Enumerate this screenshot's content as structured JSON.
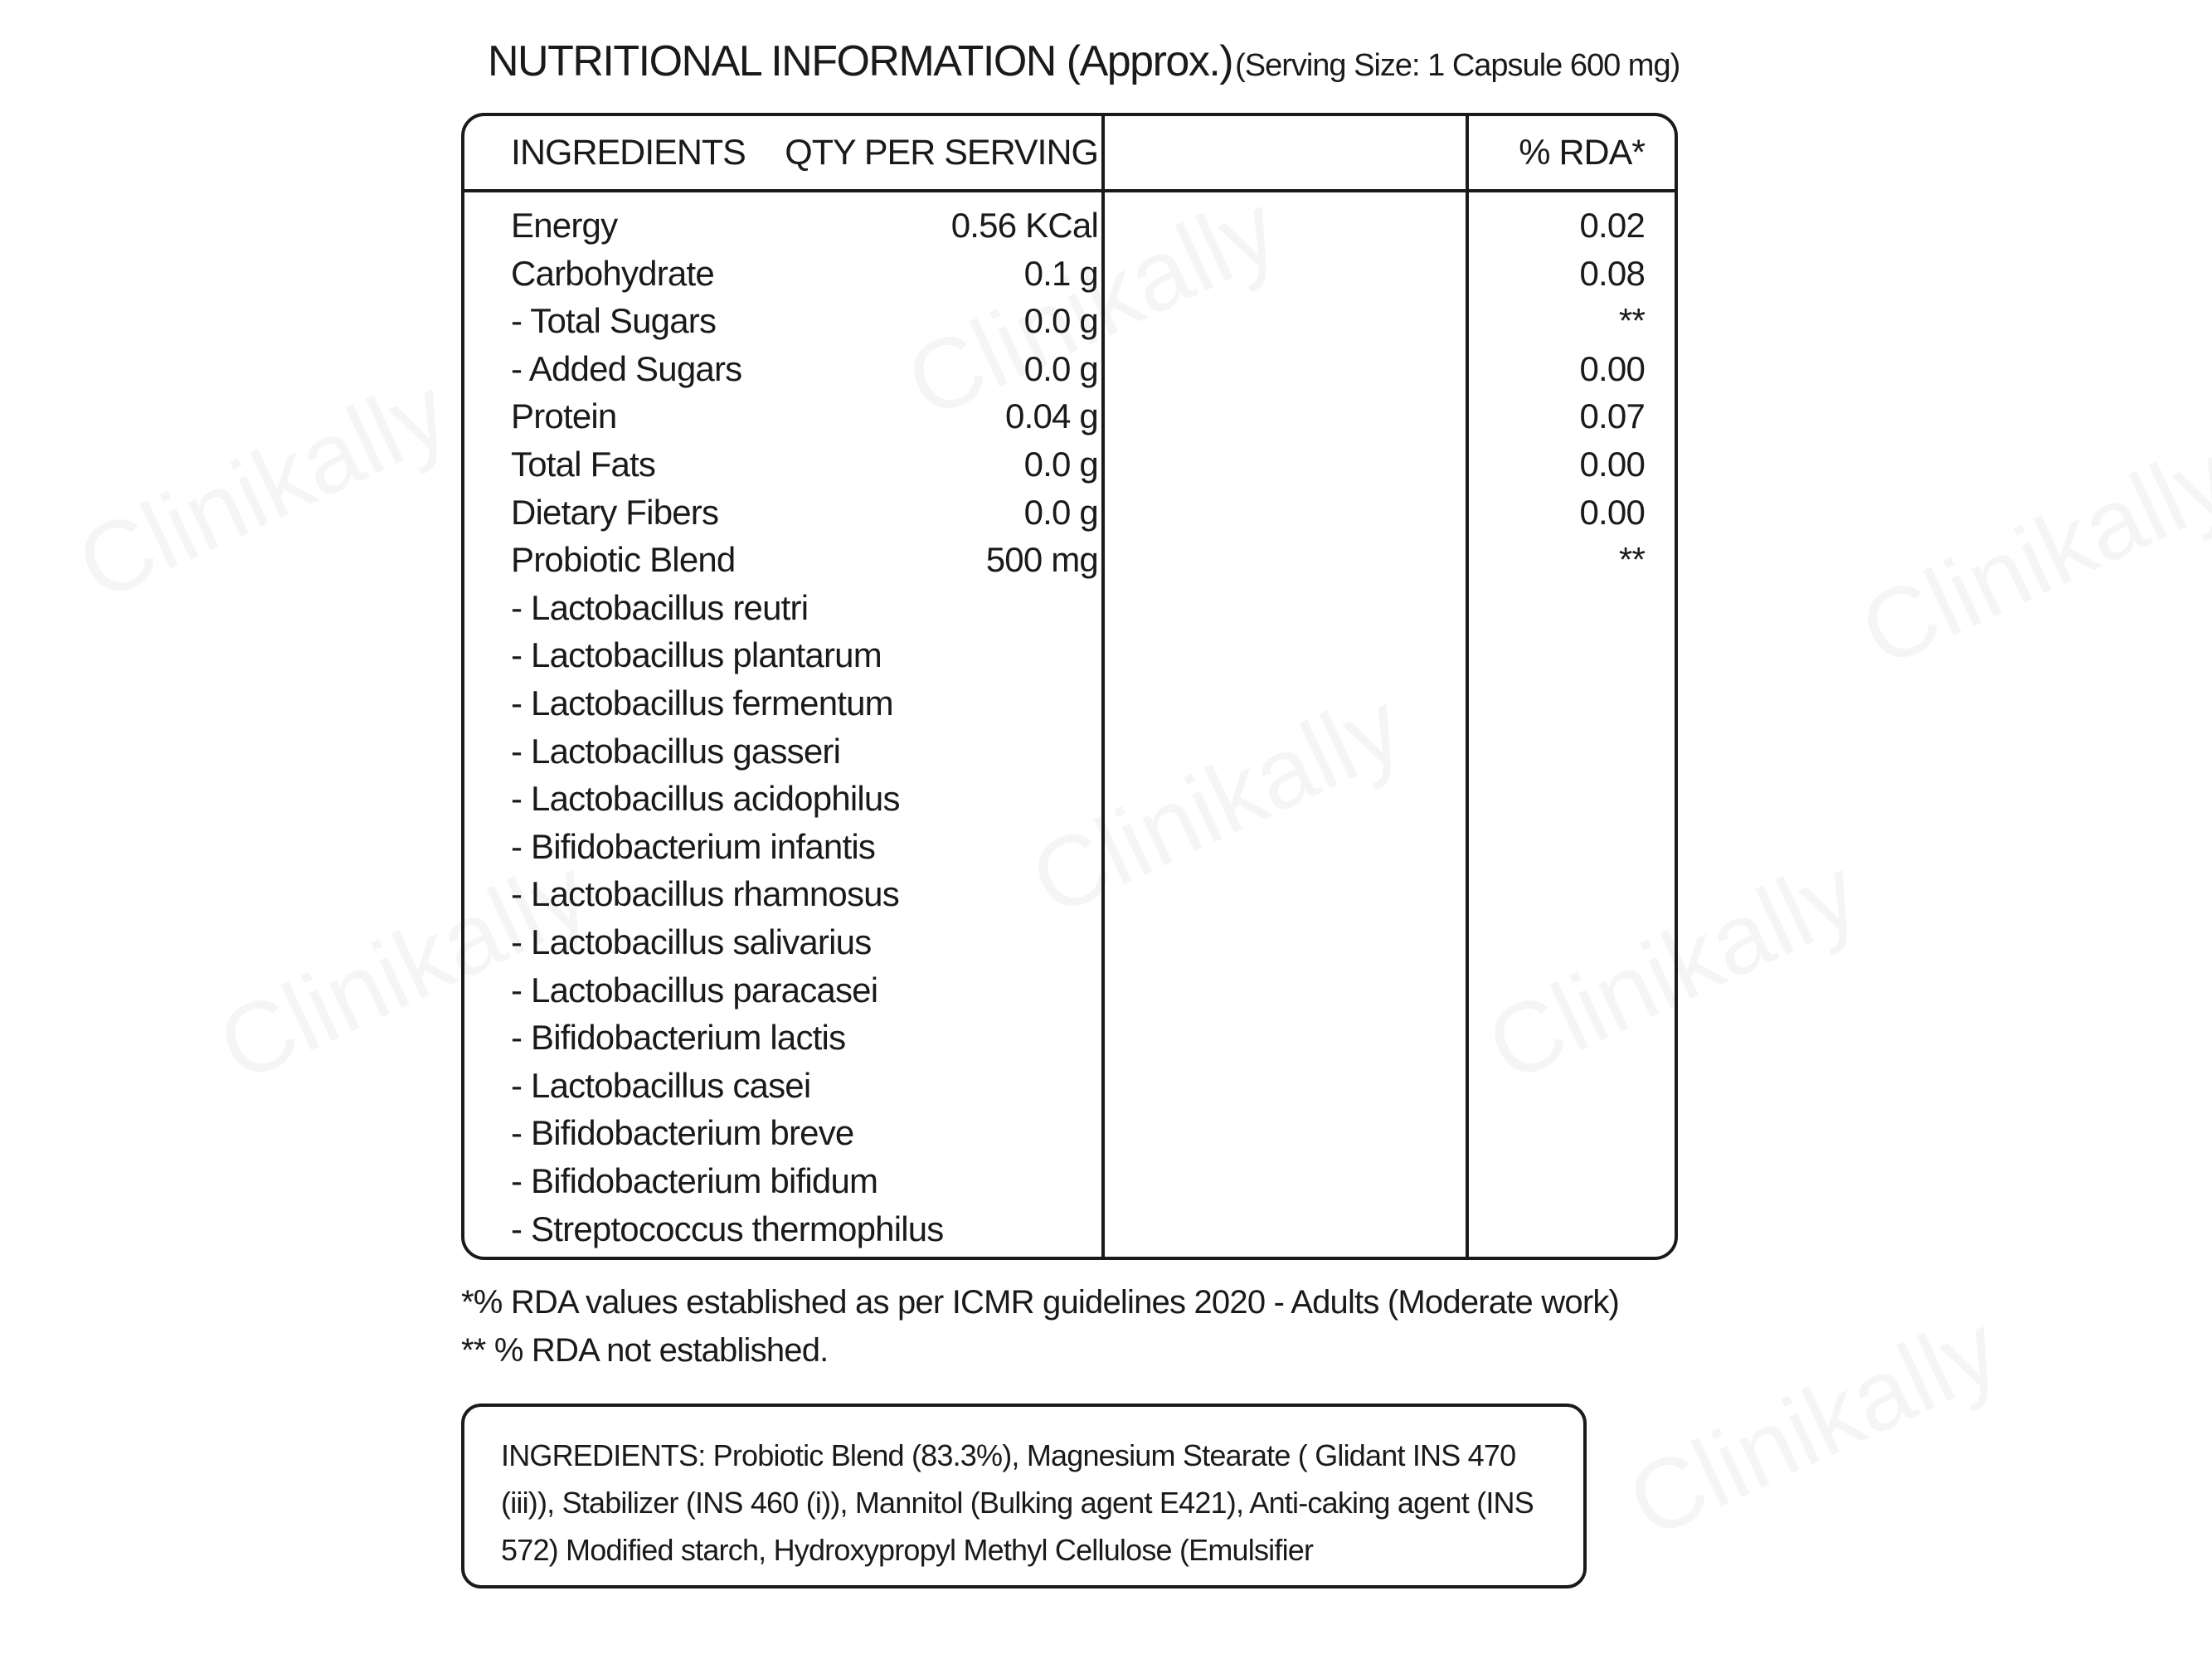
{
  "watermark": "Clinikally",
  "title": {
    "main": "NUTRITIONAL INFORMATION (Approx.)",
    "serving": "(Serving Size: 1 Capsule 600 mg)"
  },
  "table": {
    "headers": [
      "INGREDIENTS",
      "QTY PER SERVING",
      "% RDA*"
    ],
    "rows": [
      {
        "name": "Energy",
        "qty": "0.56 KCal",
        "rda": "0.02"
      },
      {
        "name": "Carbohydrate",
        "qty": "0.1 g",
        "rda": "0.08"
      },
      {
        "name": "- Total Sugars",
        "qty": "0.0 g",
        "rda": "**"
      },
      {
        "name": "- Added Sugars",
        "qty": "0.0 g",
        "rda": "0.00"
      },
      {
        "name": "Protein",
        "qty": "0.04 g",
        "rda": "0.07"
      },
      {
        "name": "Total Fats",
        "qty": "0.0 g",
        "rda": "0.00"
      },
      {
        "name": "Dietary Fibers",
        "qty": "0.0 g",
        "rda": "0.00"
      },
      {
        "name": "Probiotic Blend",
        "qty": "500 mg",
        "rda": "**"
      },
      {
        "name": "- Lactobacillus reutri",
        "qty": "",
        "rda": ""
      },
      {
        "name": "- Lactobacillus plantarum",
        "qty": "",
        "rda": ""
      },
      {
        "name": "- Lactobacillus fermentum",
        "qty": "",
        "rda": ""
      },
      {
        "name": "- Lactobacillus gasseri",
        "qty": "",
        "rda": ""
      },
      {
        "name": "- Lactobacillus acidophilus",
        "qty": "",
        "rda": ""
      },
      {
        "name": "- Bifidobacterium infantis",
        "qty": "",
        "rda": ""
      },
      {
        "name": "- Lactobacillus rhamnosus",
        "qty": "",
        "rda": ""
      },
      {
        "name": "- Lactobacillus salivarius",
        "qty": "",
        "rda": ""
      },
      {
        "name": "- Lactobacillus paracasei",
        "qty": "",
        "rda": ""
      },
      {
        "name": "- Bifidobacterium lactis",
        "qty": "",
        "rda": ""
      },
      {
        "name": "- Lactobacillus casei",
        "qty": "",
        "rda": ""
      },
      {
        "name": "- Bifidobacterium breve",
        "qty": "",
        "rda": ""
      },
      {
        "name": "- Bifidobacterium bifidum",
        "qty": "",
        "rda": ""
      },
      {
        "name": "- Streptococcus thermophilus",
        "qty": "",
        "rda": ""
      }
    ]
  },
  "footnotes": [
    "*% RDA values established as per ICMR guidelines 2020 - Adults (Moderate work)",
    "** % RDA not established."
  ],
  "ingredients_text": "INGREDIENTS: Probiotic Blend (83.3%), Magnesium Stearate ( Glidant INS 470 (iii)), Stabilizer (INS 460 (i)), Mannitol (Bulking agent E421), Anti-caking agent (INS 572) Modified starch, Hydroxypropyl Methyl Cellulose (Emulsifier"
}
